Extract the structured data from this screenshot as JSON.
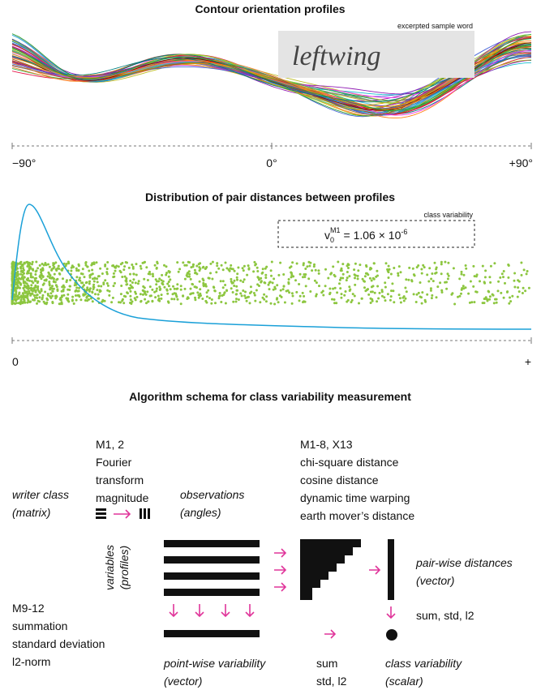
{
  "profiles": {
    "title": "Contour orientation profiles",
    "image_caption": "excerpted sample word",
    "sample_word": "leftwing",
    "axis_labels": [
      "−90°",
      "0°",
      "+90°"
    ]
  },
  "distances": {
    "title": "Distribution of pair distances between profiles",
    "box_caption": "class variability",
    "formula": {
      "symbol": "v",
      "subscript": "0",
      "superscript": "M1",
      "body": "= 1.06 × 10",
      "exponent": "-6"
    },
    "axis_labels": [
      "0",
      "+"
    ]
  },
  "schema": {
    "title": "Algorithm schema for class variability measurement",
    "fourier": [
      "M1, 2",
      "Fourier",
      "transform",
      "magnitude"
    ],
    "writer_class": [
      "writer class",
      "(matrix)"
    ],
    "observations": [
      "observations",
      "(angles)"
    ],
    "metrics": [
      "M1-8, X13",
      "chi-square distance",
      "cosine distance",
      "dynamic time warping",
      "earth mover’s distance"
    ],
    "variables": [
      "variables",
      "(profiles)"
    ],
    "pairwise": [
      "pair-wise distances",
      "(vector)"
    ],
    "pairwise_agg": "sum, std, l2",
    "aggregations": [
      "M9-12",
      "summation",
      "standard deviation",
      "l2-norm"
    ],
    "pointwise": [
      "point-wise variability",
      "(vector)"
    ],
    "sum_agg": [
      "sum",
      "std, l2"
    ],
    "class_var": [
      "class variability",
      "(scalar)"
    ]
  }
}
